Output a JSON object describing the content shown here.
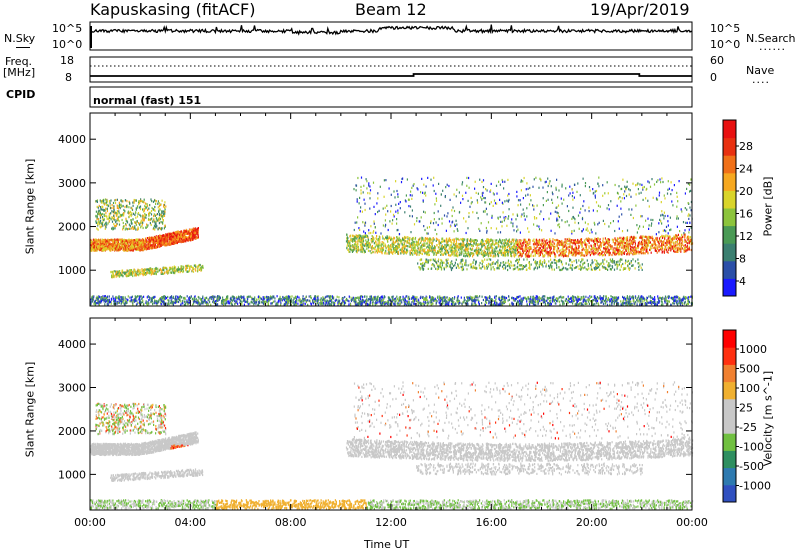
{
  "header": {
    "station": "Kapuskasing (fitACF)",
    "beam": "Beam 12",
    "date": "19/Apr/2019"
  },
  "nsky": {
    "label": "N.Sky",
    "left_ticks": [
      "10^5",
      "10^0"
    ],
    "right_ticks": [
      "10^5",
      "10^0"
    ],
    "right_label": "N.Search"
  },
  "freq": {
    "label_line1": "Freq.",
    "label_line2": "[MHz]",
    "left_ticks": [
      "18",
      "8"
    ],
    "right_ticks": [
      "60",
      "0"
    ],
    "right_label": "Nave",
    "cpid_label": "CPID",
    "mode": "normal (fast) 151"
  },
  "colors": {
    "power_scale": [
      "#1a1aff",
      "#2b4fa8",
      "#3b7f70",
      "#4a9a55",
      "#8cc43c",
      "#d9d42a",
      "#f6a820",
      "#f07018",
      "#e83010",
      "#e81010"
    ],
    "velocity_scale": [
      "#3050c0",
      "#2e7ab0",
      "#2e8f60",
      "#70c040",
      "#c8c8c8",
      "#c8c8c8",
      "#f0b030",
      "#f08030",
      "#ff3010",
      "#ff0000"
    ]
  },
  "chart_data": [
    {
      "type": "heatmap",
      "panel": "power",
      "ylabel": "Slant Range [km]",
      "yticks": [
        "4000",
        "3000",
        "2000",
        "1000"
      ],
      "ylim": [
        180,
        4600
      ],
      "colorbar_label": "Power [dB]",
      "colorbar_ticks": [
        "28",
        "24",
        "20",
        "16",
        "12",
        "8",
        "4"
      ],
      "colorbar_range": [
        0,
        30
      ]
    },
    {
      "type": "heatmap",
      "panel": "velocity",
      "ylabel": "Slant Range [km]",
      "yticks": [
        "4000",
        "3000",
        "2000",
        "1000"
      ],
      "ylim": [
        180,
        4600
      ],
      "colorbar_label": "Velocity [m s^-1]",
      "colorbar_ticks": [
        "1000",
        "500",
        "100",
        "25",
        "-25",
        "-100",
        "-500",
        "-1000"
      ]
    }
  ],
  "xaxis": {
    "label": "Time UT",
    "ticks": [
      "00:00",
      "04:00",
      "08:00",
      "12:00",
      "16:00",
      "20:00",
      "00:00"
    ],
    "xlim": [
      0,
      24
    ]
  }
}
